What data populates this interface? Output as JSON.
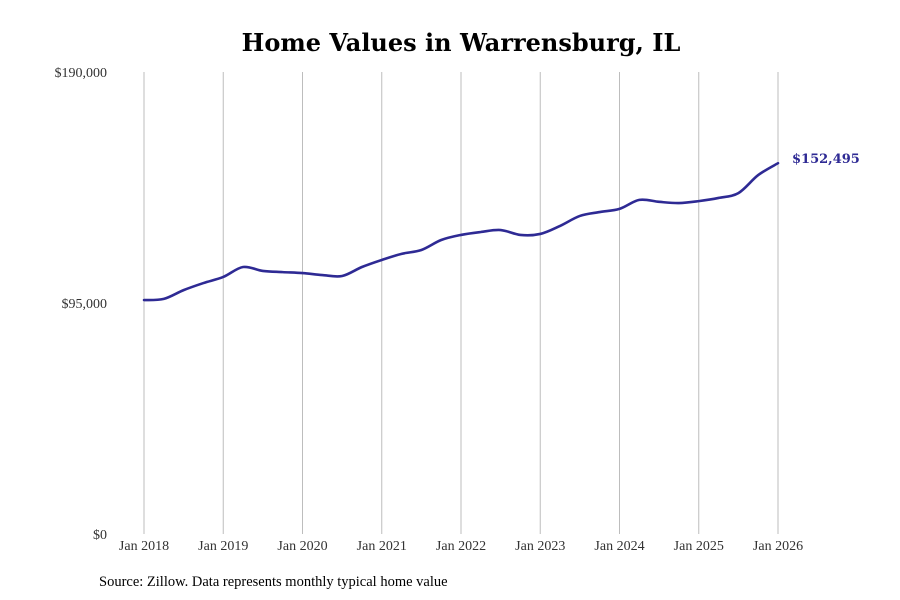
{
  "chart_data": {
    "type": "line",
    "title": "Home Values in Warrensburg, IL",
    "xlabel": "",
    "ylabel": "",
    "ylim": [
      0,
      190000
    ],
    "y_ticks": [
      0,
      95000,
      190000
    ],
    "y_tick_labels": [
      "$0",
      "$95,000",
      "$190,000"
    ],
    "x_tick_labels": [
      "Jan 2018",
      "Jan 2019",
      "Jan 2020",
      "Jan 2021",
      "Jan 2022",
      "Jan 2023",
      "Jan 2024",
      "Jan 2025",
      "Jan 2026"
    ],
    "grid": "vertical",
    "color": "#2e2a94",
    "series": [
      {
        "name": "Typical home value",
        "x": [
          "2018-01",
          "2018-04",
          "2018-07",
          "2018-10",
          "2019-01",
          "2019-04",
          "2019-07",
          "2019-10",
          "2020-01",
          "2020-04",
          "2020-07",
          "2020-10",
          "2021-01",
          "2021-04",
          "2021-07",
          "2021-10",
          "2022-01",
          "2022-04",
          "2022-07",
          "2022-10",
          "2023-01",
          "2023-04",
          "2023-07",
          "2023-10",
          "2024-01",
          "2024-04",
          "2024-07",
          "2024-10",
          "2025-01",
          "2025-04",
          "2025-07",
          "2025-10",
          "2026-01"
        ],
        "values": [
          96200,
          96700,
          100300,
          103200,
          105700,
          109800,
          108200,
          107700,
          107300,
          106500,
          106100,
          109800,
          112700,
          115200,
          116800,
          120900,
          123000,
          124200,
          125000,
          123000,
          123400,
          126700,
          130800,
          132400,
          133700,
          137400,
          136600,
          136100,
          136900,
          138200,
          140200,
          147600,
          152495
        ]
      }
    ],
    "end_label": "$152,495"
  },
  "source": "Source: Zillow. Data represents monthly typical home value"
}
